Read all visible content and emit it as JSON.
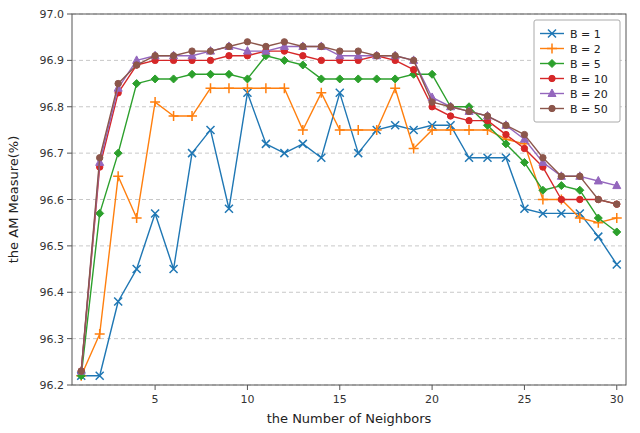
{
  "chart_data": {
    "type": "line",
    "x_label": "the Number of Neighbors",
    "y_label": "the AM Measure(%)",
    "x": [
      1,
      2,
      3,
      4,
      5,
      6,
      7,
      8,
      9,
      10,
      11,
      12,
      13,
      14,
      15,
      16,
      17,
      18,
      19,
      20,
      21,
      22,
      23,
      24,
      25,
      26,
      27,
      28,
      29,
      30
    ],
    "series": [
      {
        "name": "B = 1",
        "color": "#1f77b4",
        "marker": "x",
        "values": [
          96.22,
          96.22,
          96.38,
          96.45,
          96.57,
          96.45,
          96.7,
          96.75,
          96.58,
          96.83,
          96.72,
          96.7,
          96.72,
          96.69,
          96.83,
          96.7,
          96.75,
          96.76,
          96.75,
          96.76,
          96.76,
          96.69,
          96.69,
          96.69,
          96.58,
          96.57,
          96.57,
          96.57,
          96.52,
          96.46
        ]
      },
      {
        "name": "B = 2",
        "color": "#ff7f0e",
        "marker": "plus",
        "values": [
          96.22,
          96.31,
          96.65,
          96.56,
          96.81,
          96.78,
          96.78,
          96.84,
          96.84,
          96.84,
          96.84,
          96.84,
          96.75,
          96.83,
          96.75,
          96.75,
          96.75,
          96.84,
          96.71,
          96.75,
          96.75,
          96.75,
          96.75,
          96.73,
          96.72,
          96.6,
          96.6,
          96.56,
          96.55,
          96.56
        ]
      },
      {
        "name": "B = 5",
        "color": "#2ca02c",
        "marker": "diamond",
        "values": [
          96.22,
          96.57,
          96.7,
          96.85,
          96.86,
          96.86,
          96.87,
          96.87,
          96.87,
          96.86,
          96.91,
          96.9,
          96.89,
          96.86,
          96.86,
          96.86,
          96.86,
          96.86,
          96.87,
          96.87,
          96.8,
          96.8,
          96.76,
          96.72,
          96.68,
          96.62,
          96.63,
          96.62,
          96.56,
          96.53
        ]
      },
      {
        "name": "B = 10",
        "color": "#d62728",
        "marker": "circle",
        "values": [
          96.23,
          96.67,
          96.83,
          96.89,
          96.9,
          96.9,
          96.9,
          96.9,
          96.91,
          96.91,
          96.92,
          96.92,
          96.91,
          96.9,
          96.9,
          96.9,
          96.91,
          96.9,
          96.88,
          96.8,
          96.78,
          96.77,
          96.77,
          96.74,
          96.71,
          96.67,
          96.6,
          96.6,
          96.6,
          96.59
        ]
      },
      {
        "name": "B = 20",
        "color": "#9467bd",
        "marker": "triangle",
        "values": [
          96.23,
          96.68,
          96.84,
          96.9,
          96.91,
          96.91,
          96.91,
          96.92,
          96.93,
          96.92,
          96.92,
          96.93,
          96.93,
          96.93,
          96.91,
          96.91,
          96.91,
          96.91,
          96.9,
          96.82,
          96.8,
          96.79,
          96.78,
          96.76,
          96.73,
          96.68,
          96.65,
          96.65,
          96.64,
          96.63
        ]
      },
      {
        "name": "B = 50",
        "color": "#8c564b",
        "marker": "circle",
        "values": [
          96.23,
          96.69,
          96.85,
          96.89,
          96.91,
          96.91,
          96.92,
          96.92,
          96.93,
          96.94,
          96.93,
          96.94,
          96.93,
          96.93,
          96.92,
          96.92,
          96.91,
          96.91,
          96.9,
          96.81,
          96.8,
          96.79,
          96.78,
          96.76,
          96.74,
          96.69,
          96.65,
          96.65,
          96.6,
          96.59
        ]
      }
    ],
    "xlim": [
      0.5,
      30.5
    ],
    "xticks": [
      5,
      10,
      15,
      20,
      25,
      30
    ],
    "ylim": [
      96.2,
      97.0
    ],
    "yticks": [
      96.2,
      96.3,
      96.4,
      96.5,
      96.6,
      96.7,
      96.8,
      96.9,
      {
        "value": 97.0,
        "label": "97.0"
      }
    ],
    "grid": true,
    "legend": "upper right"
  }
}
